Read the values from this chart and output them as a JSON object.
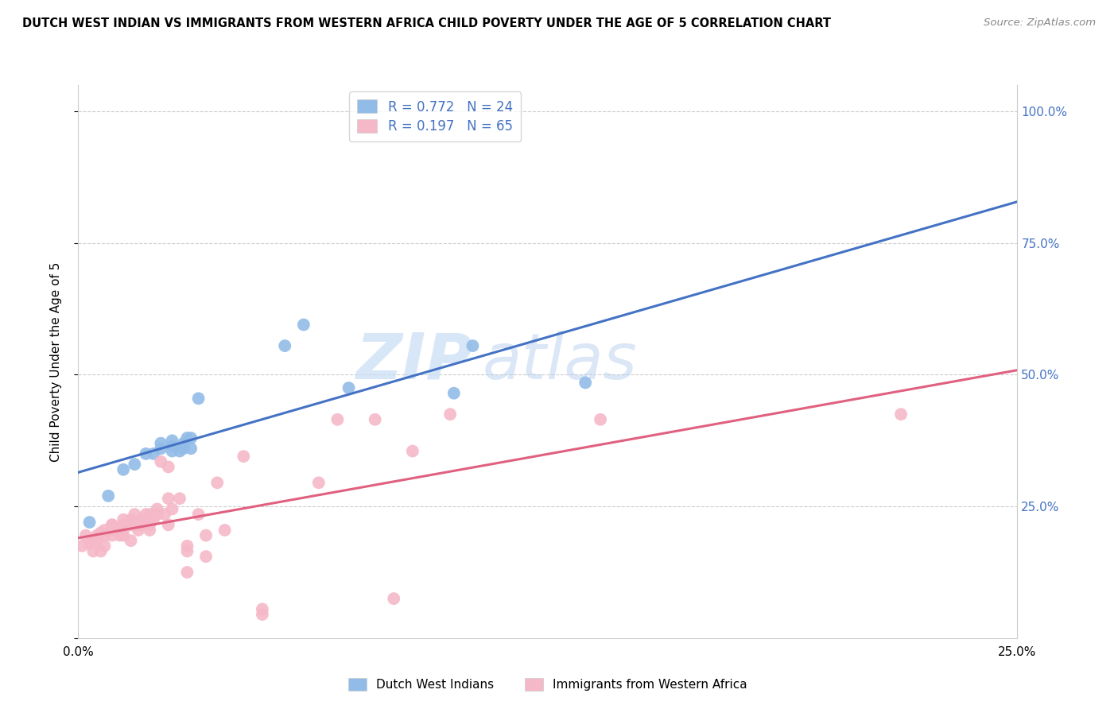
{
  "title": "DUTCH WEST INDIAN VS IMMIGRANTS FROM WESTERN AFRICA CHILD POVERTY UNDER THE AGE OF 5 CORRELATION CHART",
  "source": "Source: ZipAtlas.com",
  "ylabel": "Child Poverty Under the Age of 5",
  "xlim": [
    0.0,
    0.25
  ],
  "ylim": [
    0.0,
    1.05
  ],
  "x_ticks": [
    0.0,
    0.05,
    0.1,
    0.15,
    0.2,
    0.25
  ],
  "x_tick_labels": [
    "0.0%",
    "",
    "",
    "",
    "",
    "25.0%"
  ],
  "y_ticks": [
    0.0,
    0.25,
    0.5,
    0.75,
    1.0
  ],
  "y_tick_labels_right": [
    "",
    "25.0%",
    "50.0%",
    "75.0%",
    "100.0%"
  ],
  "blue_R": 0.772,
  "blue_N": 24,
  "pink_R": 0.197,
  "pink_N": 65,
  "blue_color": "#92bce8",
  "pink_color": "#f5b8c8",
  "blue_line_color": "#4472c4",
  "pink_line_color": "#e06080",
  "tick_label_color": "#4472c4",
  "legend_label_blue": "Dutch West Indians",
  "legend_label_pink": "Immigrants from Western Africa",
  "watermark_zip": "ZIP",
  "watermark_atlas": "atlas",
  "blue_scatter_x": [
    0.003,
    0.008,
    0.012,
    0.015,
    0.018,
    0.02,
    0.022,
    0.022,
    0.025,
    0.025,
    0.025,
    0.027,
    0.028,
    0.028,
    0.029,
    0.03,
    0.03,
    0.032,
    0.055,
    0.06,
    0.072,
    0.1,
    0.105,
    0.135
  ],
  "blue_scatter_y": [
    0.22,
    0.27,
    0.32,
    0.33,
    0.35,
    0.35,
    0.36,
    0.37,
    0.355,
    0.365,
    0.375,
    0.355,
    0.36,
    0.37,
    0.38,
    0.36,
    0.38,
    0.455,
    0.555,
    0.595,
    0.475,
    0.465,
    0.555,
    0.485
  ],
  "pink_scatter_x": [
    0.001,
    0.002,
    0.003,
    0.004,
    0.004,
    0.005,
    0.005,
    0.006,
    0.006,
    0.007,
    0.007,
    0.007,
    0.009,
    0.009,
    0.009,
    0.009,
    0.011,
    0.011,
    0.012,
    0.012,
    0.012,
    0.012,
    0.014,
    0.014,
    0.014,
    0.015,
    0.015,
    0.016,
    0.016,
    0.017,
    0.017,
    0.018,
    0.019,
    0.019,
    0.019,
    0.019,
    0.02,
    0.021,
    0.021,
    0.022,
    0.023,
    0.024,
    0.024,
    0.024,
    0.025,
    0.027,
    0.029,
    0.029,
    0.029,
    0.032,
    0.034,
    0.034,
    0.037,
    0.039,
    0.044,
    0.049,
    0.049,
    0.064,
    0.069,
    0.079,
    0.084,
    0.089,
    0.099,
    0.139,
    0.219
  ],
  "pink_scatter_y": [
    0.175,
    0.195,
    0.18,
    0.165,
    0.185,
    0.195,
    0.185,
    0.2,
    0.165,
    0.175,
    0.195,
    0.205,
    0.195,
    0.205,
    0.215,
    0.215,
    0.195,
    0.205,
    0.195,
    0.205,
    0.215,
    0.225,
    0.185,
    0.215,
    0.225,
    0.215,
    0.235,
    0.205,
    0.215,
    0.215,
    0.225,
    0.235,
    0.205,
    0.215,
    0.225,
    0.235,
    0.225,
    0.235,
    0.245,
    0.335,
    0.235,
    0.215,
    0.265,
    0.325,
    0.245,
    0.265,
    0.125,
    0.165,
    0.175,
    0.235,
    0.155,
    0.195,
    0.295,
    0.205,
    0.345,
    0.045,
    0.055,
    0.295,
    0.415,
    0.415,
    0.075,
    0.355,
    0.425,
    0.415,
    0.425
  ]
}
